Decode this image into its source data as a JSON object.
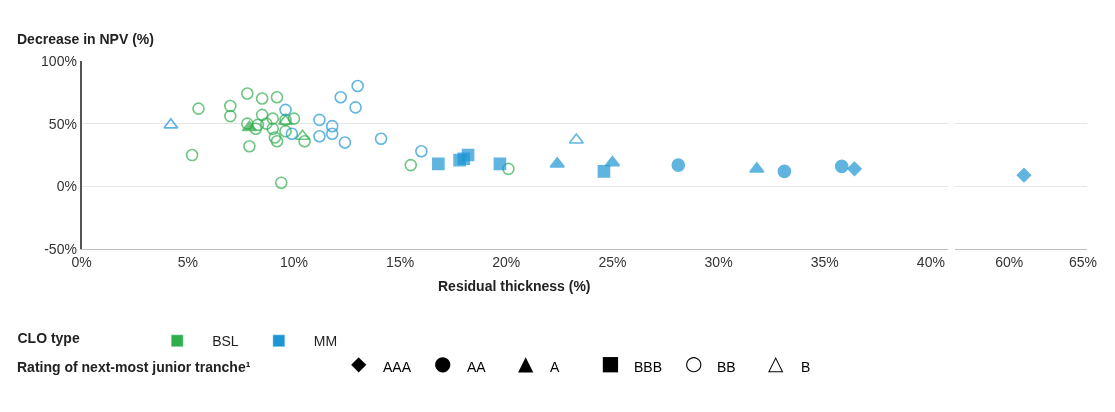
{
  "chart_data": [
    {
      "type": "scatter",
      "xlabel": "Residual thickness (%)",
      "ylabel": "Decrease in NPV (%)",
      "legend_title": "CLO type",
      "annotations": [
        "Rating of next-most junior tranche¹",
        "◆",
        "AAA",
        "●",
        "AA",
        "▲",
        "A",
        "■",
        "BBB",
        "○",
        "BB",
        "△",
        "B"
      ],
      "xlim": [
        0,
        40.8
      ],
      "ylim": [
        -50,
        100
      ],
      "grid": "y",
      "legend": "bottom left",
      "xticks": [
        {
          "value": 0,
          "label": "0%"
        },
        {
          "value": 5,
          "label": "5%"
        },
        {
          "value": 10,
          "label": "10%"
        },
        {
          "value": 15,
          "label": "15%"
        },
        {
          "value": 20,
          "label": "20%"
        },
        {
          "value": 25,
          "label": "25%"
        },
        {
          "value": 30,
          "label": "30%"
        },
        {
          "value": 35,
          "label": "35%"
        },
        {
          "value": 40,
          "label": "40%"
        }
      ],
      "yticks": [
        {
          "value": -50,
          "label": "-50%"
        },
        {
          "value": 0,
          "label": "0%"
        },
        {
          "value": 50,
          "label": "50%"
        },
        {
          "value": 100,
          "label": "100%"
        }
      ],
      "series": [
        {
          "name": "BSL",
          "color": "#2fae4e",
          "x": [
            5.5,
            5.2,
            7.0,
            7.0,
            7.8,
            8.5,
            9.2,
            7.9,
            9.4,
            7.8,
            8.2,
            8.5,
            9.0,
            9.6,
            10.0,
            8.3,
            9.0,
            9.6,
            9.1,
            9.2,
            10.5,
            8.7,
            15.5,
            20.1,
            7.9,
            9.6,
            10.4
          ],
          "values": [
            62,
            25,
            64,
            56,
            74,
            70,
            71,
            32,
            3,
            50,
            46,
            57,
            54,
            53,
            54,
            49,
            46,
            44,
            39,
            36,
            36,
            50,
            17,
            14,
            47,
            52,
            40
          ],
          "marker": [
            "circle-open",
            "circle-open",
            "circle-open",
            "circle-open",
            "circle-open",
            "circle-open",
            "circle-open",
            "circle-open",
            "circle-open",
            "circle-open",
            "circle-open",
            "circle-open",
            "circle-open",
            "circle-open",
            "circle-open",
            "circle-open",
            "circle-open",
            "circle-open",
            "circle-open",
            "circle-open",
            "circle-open",
            "circle-open",
            "circle-open",
            "circle-open",
            "triangle",
            "triangle-open",
            "triangle-open"
          ]
        },
        {
          "name": "MM",
          "color": "#1d96d4",
          "x": [
            36.4,
            28.1,
            33.1,
            35.8,
            22.4,
            25.0,
            31.8,
            16.8,
            17.8,
            18.0,
            18.2,
            19.7,
            24.6,
            9.6,
            9.9,
            11.2,
            11.2,
            11.8,
            11.8,
            12.4,
            12.2,
            13.0,
            12.9,
            14.1,
            16.0,
            4.2,
            23.3
          ],
          "values": [
            14,
            17,
            12,
            16,
            18,
            19,
            14,
            18,
            21,
            22,
            25,
            18,
            12,
            61,
            42,
            53,
            40,
            48,
            42,
            35,
            71,
            80,
            63,
            38,
            28,
            49,
            37
          ],
          "marker": [
            "diamond",
            "circle",
            "circle",
            "circle",
            "triangle",
            "triangle",
            "triangle",
            "square",
            "square",
            "square",
            "square",
            "square",
            "square",
            "circle-open",
            "circle-open",
            "circle-open",
            "circle-open",
            "circle-open",
            "circle-open",
            "circle-open",
            "circle-open",
            "circle-open",
            "circle-open",
            "circle-open",
            "circle-open",
            "triangle-open",
            "triangle-open"
          ]
        }
      ]
    },
    {
      "type": "scatter",
      "xlim": [
        56.3,
        65.3
      ],
      "ylim": [
        -50,
        100
      ],
      "grid": "y",
      "tick_labels": "x",
      "xticks": [
        {
          "value": 60,
          "label": "60%"
        },
        {
          "value": 65,
          "label": "65%"
        }
      ],
      "yticks": [
        {
          "value": -50,
          "label": null
        },
        {
          "value": 0,
          "label": null
        },
        {
          "value": 50,
          "label": null
        },
        {
          "value": 100,
          "label": null
        }
      ],
      "series": [
        {
          "color": "#1d96d4",
          "x": [
            61.0
          ],
          "values": [
            9
          ],
          "marker": [
            "diamond"
          ]
        }
      ]
    }
  ]
}
